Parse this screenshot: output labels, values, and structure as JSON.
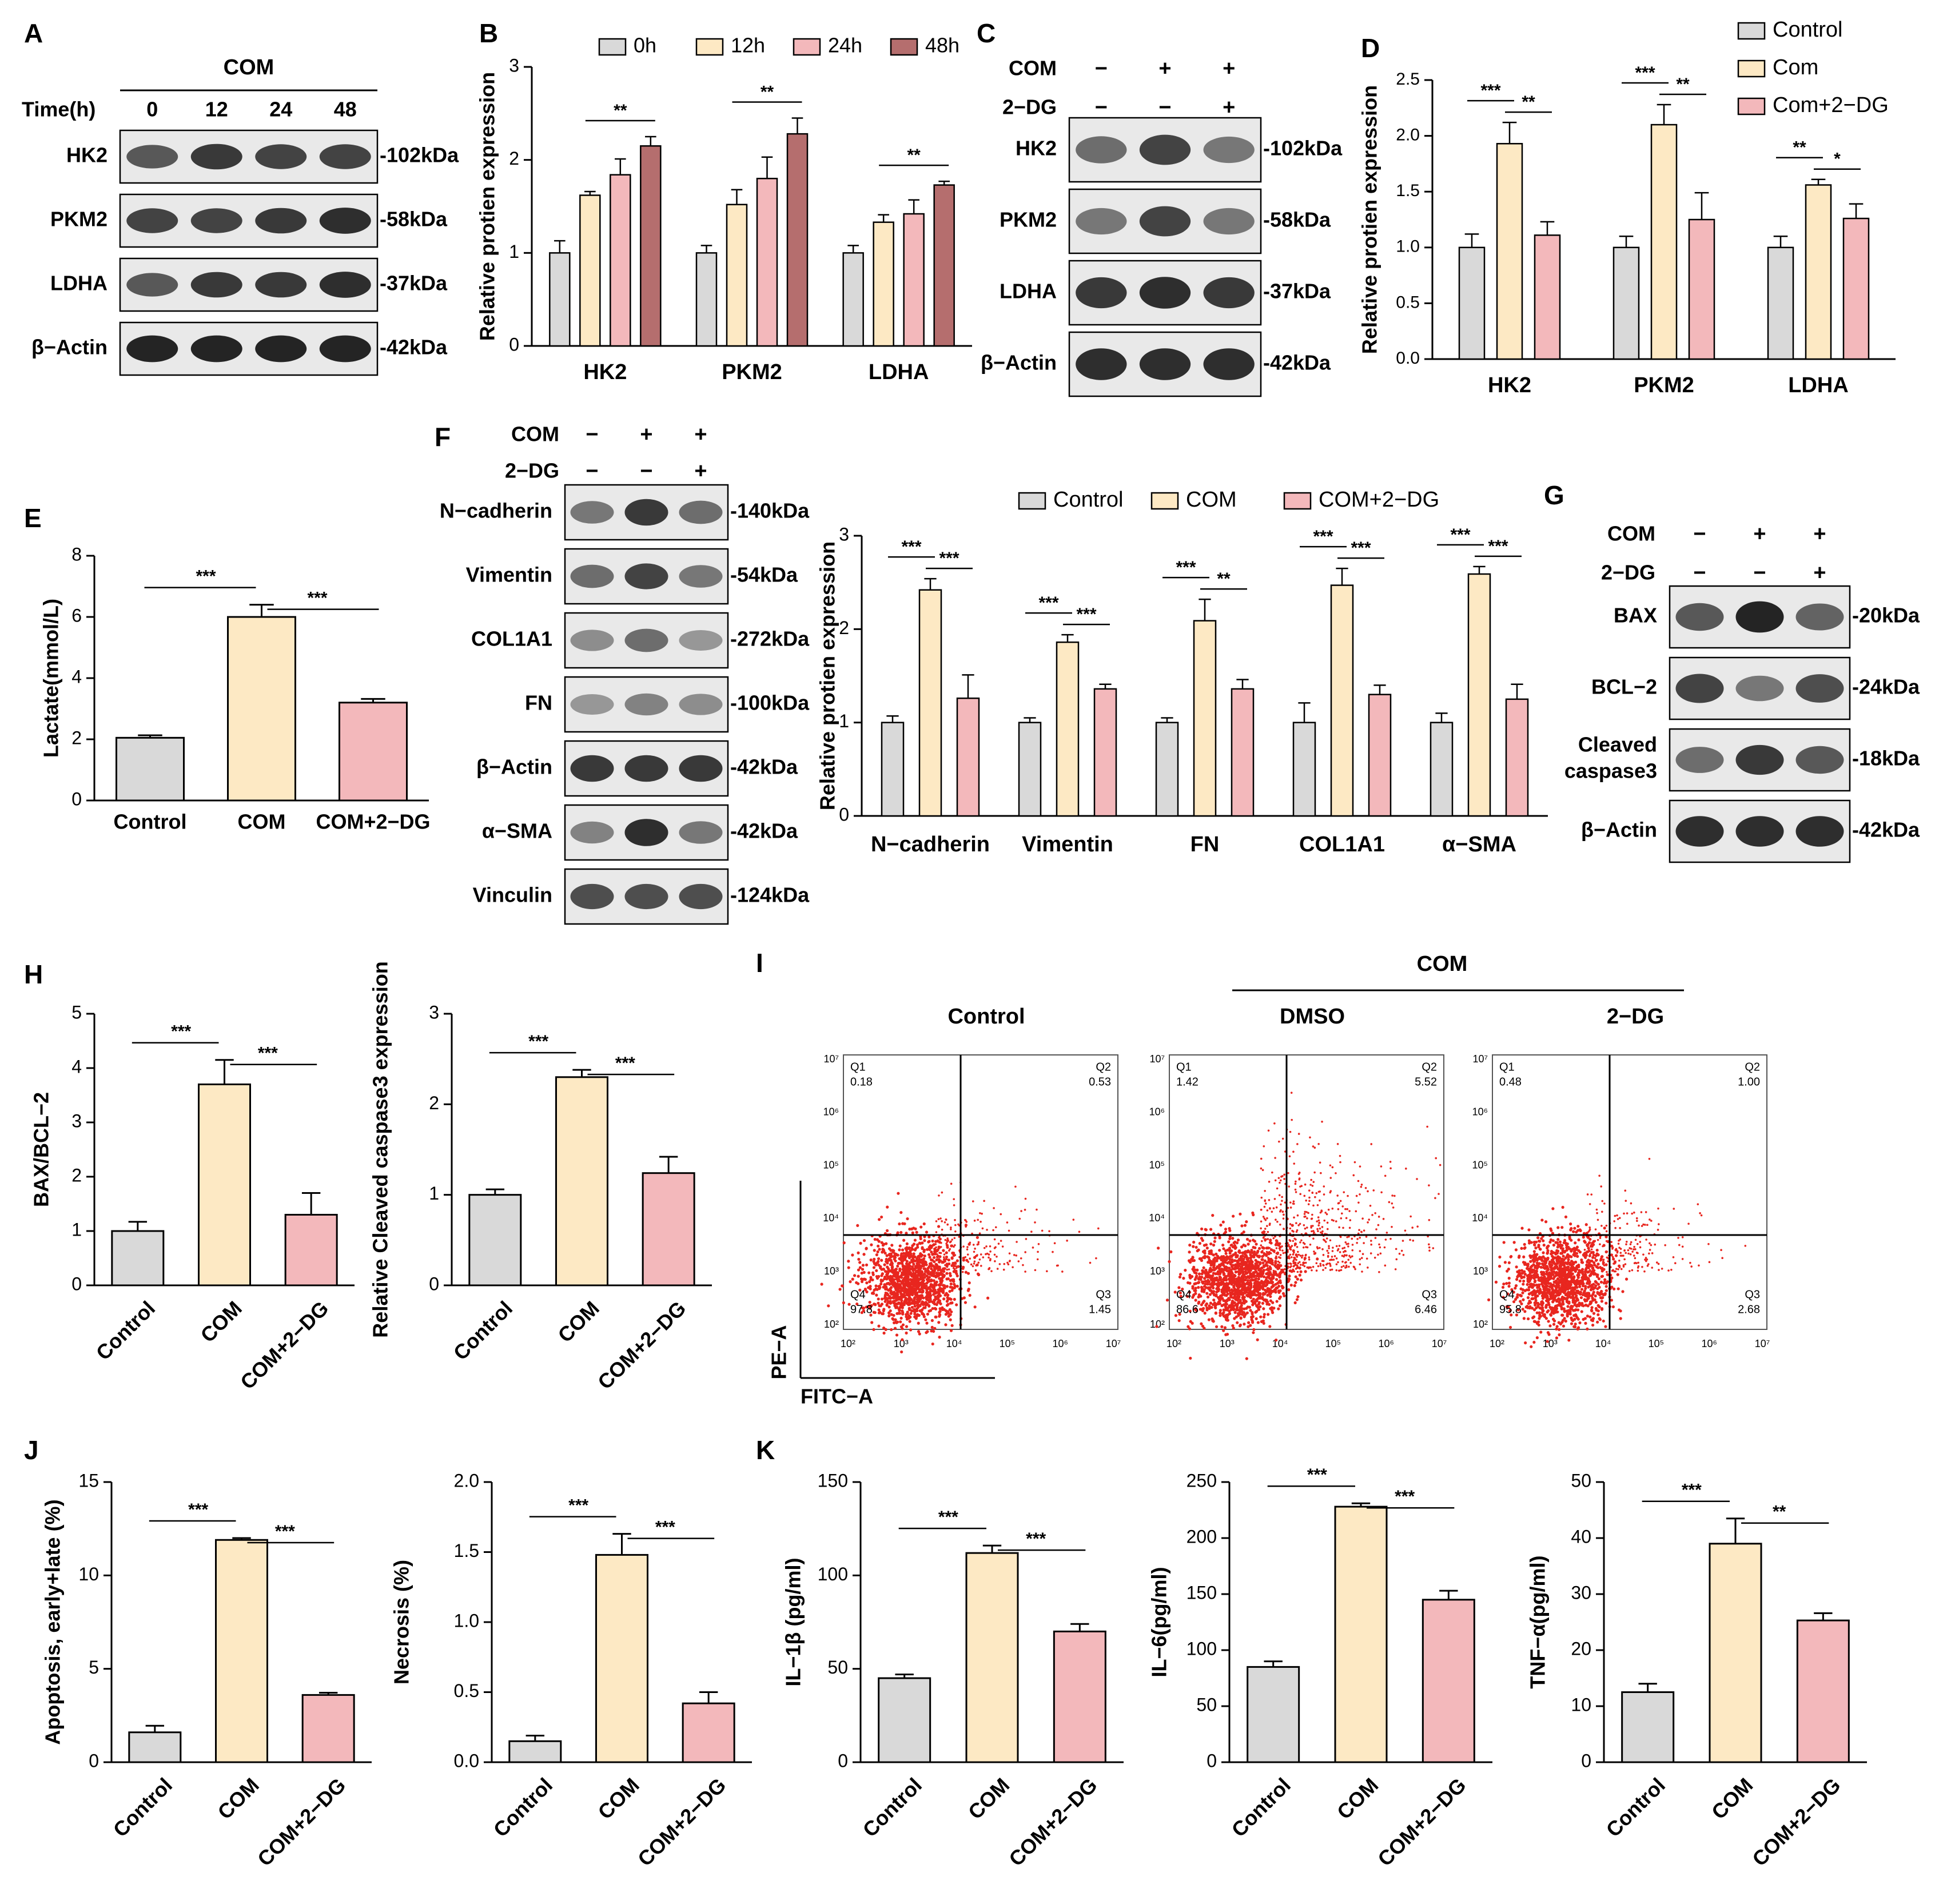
{
  "figure": {
    "panel_letters": [
      "A",
      "B",
      "C",
      "D",
      "E",
      "F",
      "G",
      "H",
      "I",
      "J",
      "K"
    ],
    "colors": {
      "control": "#d9d9d9",
      "com": "#fde9c4",
      "com_2dg": "#f3b8bb",
      "h0": "#d9d9d9",
      "h12": "#fde9c4",
      "h24": "#f3b8bb",
      "h48": "#b56e6e",
      "flow_dot": "#e8261f",
      "axis": "#000000",
      "blot_bg": "#e9e9e9",
      "band": "#1a1a1a"
    }
  },
  "blots": {
    "A": {
      "treatment": "COM",
      "time_label": "Time(h)",
      "lanes": [
        "0",
        "12",
        "24",
        "48"
      ],
      "rows": [
        {
          "name": "HK2",
          "kda": "-102kDa",
          "intensity": [
            0.7,
            0.85,
            0.8,
            0.8
          ]
        },
        {
          "name": "PKM2",
          "kda": "-58kDa",
          "intensity": [
            0.8,
            0.8,
            0.85,
            0.9
          ]
        },
        {
          "name": "LDHA",
          "kda": "-37kDa",
          "intensity": [
            0.7,
            0.85,
            0.85,
            0.9
          ]
        },
        {
          "name": "β−Actin",
          "kda": "-42kDa",
          "intensity": [
            0.95,
            0.95,
            0.95,
            0.95
          ]
        }
      ]
    },
    "C": {
      "row1_label": "COM",
      "row1": [
        "−",
        "+",
        "+"
      ],
      "row2_label": "2−DG",
      "row2": [
        "−",
        "−",
        "+"
      ],
      "rows": [
        {
          "name": "HK2",
          "kda": "-102kDa",
          "intensity": [
            0.6,
            0.8,
            0.55
          ]
        },
        {
          "name": "PKM2",
          "kda": "-58kDa",
          "intensity": [
            0.55,
            0.8,
            0.55
          ]
        },
        {
          "name": "LDHA",
          "kda": "-37kDa",
          "intensity": [
            0.85,
            0.9,
            0.85
          ]
        },
        {
          "name": "β−Actin",
          "kda": "-42kDa",
          "intensity": [
            0.9,
            0.9,
            0.9
          ]
        }
      ]
    },
    "F": {
      "row1_label": "COM",
      "row1": [
        "−",
        "+",
        "+"
      ],
      "row2_label": "2−DG",
      "row2": [
        "−",
        "−",
        "+"
      ],
      "rows": [
        {
          "name": "N−cadherin",
          "kda": "-140kDa",
          "intensity": [
            0.55,
            0.85,
            0.6
          ]
        },
        {
          "name": "Vimentin",
          "kda": "-54kDa",
          "intensity": [
            0.6,
            0.8,
            0.55
          ]
        },
        {
          "name": "COL1A1",
          "kda": "-272kDa",
          "intensity": [
            0.45,
            0.6,
            0.4
          ]
        },
        {
          "name": "FN",
          "kda": "-100kDa",
          "intensity": [
            0.4,
            0.5,
            0.45
          ]
        },
        {
          "name": "β−Actin",
          "kda": "-42kDa",
          "intensity": [
            0.85,
            0.85,
            0.85
          ]
        },
        {
          "name": "α−SMA",
          "kda": "-42kDa",
          "intensity": [
            0.5,
            0.9,
            0.55
          ]
        },
        {
          "name": "Vinculin",
          "kda": "-124kDa",
          "intensity": [
            0.75,
            0.75,
            0.75
          ]
        }
      ]
    },
    "G": {
      "row1_label": "COM",
      "row1": [
        "−",
        "+",
        "+"
      ],
      "row2_label": "2−DG",
      "row2": [
        "−",
        "−",
        "+"
      ],
      "rows": [
        {
          "name": "BAX",
          "kda": "-20kDa",
          "intensity": [
            0.7,
            0.95,
            0.65
          ]
        },
        {
          "name": "BCL−2",
          "kda": "-24kDa",
          "intensity": [
            0.8,
            0.55,
            0.75
          ]
        },
        {
          "name": "Cleaved caspase3",
          "kda": "-18kDa",
          "intensity": [
            0.6,
            0.85,
            0.7
          ]
        },
        {
          "name": "β−Actin",
          "kda": "-42kDa",
          "intensity": [
            0.9,
            0.9,
            0.9
          ]
        }
      ]
    }
  },
  "chart_data": [
    {
      "id": "B",
      "type": "bar",
      "ylabel": "Relative protien expression",
      "ylim": [
        0,
        3
      ],
      "yticks": [
        0,
        1,
        2,
        3
      ],
      "categories": [
        "HK2",
        "PKM2",
        "LDHA"
      ],
      "legend": [
        "0h",
        "12h",
        "24h",
        "48h"
      ],
      "series": [
        {
          "name": "0h",
          "values": [
            1.0,
            1.0,
            1.0
          ],
          "err": [
            0.13,
            0.08,
            0.08
          ]
        },
        {
          "name": "12h",
          "values": [
            1.62,
            1.52,
            1.33
          ],
          "err": [
            0.04,
            0.16,
            0.08
          ]
        },
        {
          "name": "24h",
          "values": [
            1.84,
            1.8,
            1.42
          ],
          "err": [
            0.17,
            0.23,
            0.15
          ]
        },
        {
          "name": "48h",
          "values": [
            2.15,
            2.28,
            1.73
          ],
          "err": [
            0.1,
            0.17,
            0.04
          ]
        }
      ],
      "sig": [
        {
          "cat": 0,
          "from": 1,
          "to": 3,
          "label": "**"
        },
        {
          "cat": 1,
          "from": 1,
          "to": 3,
          "label": "**"
        },
        {
          "cat": 2,
          "from": 1,
          "to": 3,
          "label": "**"
        }
      ]
    },
    {
      "id": "D",
      "type": "bar",
      "ylabel": "Relative protien expression",
      "ylim": [
        0,
        2.5
      ],
      "yticks": [
        0.0,
        0.5,
        1.0,
        1.5,
        2.0,
        2.5
      ],
      "categories": [
        "HK2",
        "PKM2",
        "LDHA"
      ],
      "legend": [
        "Control",
        "Com",
        "Com+2−DG"
      ],
      "series": [
        {
          "name": "Control",
          "values": [
            1.0,
            1.0,
            1.0
          ],
          "err": [
            0.12,
            0.1,
            0.1
          ]
        },
        {
          "name": "Com",
          "values": [
            1.93,
            2.1,
            1.56
          ],
          "err": [
            0.19,
            0.18,
            0.05
          ]
        },
        {
          "name": "Com+2−DG",
          "values": [
            1.11,
            1.25,
            1.26
          ],
          "err": [
            0.12,
            0.24,
            0.13
          ]
        }
      ],
      "sig": [
        {
          "cat": 0,
          "from": 0,
          "to": 1,
          "label": "***"
        },
        {
          "cat": 0,
          "from": 1,
          "to": 2,
          "label": "**"
        },
        {
          "cat": 1,
          "from": 0,
          "to": 1,
          "label": "***"
        },
        {
          "cat": 1,
          "from": 1,
          "to": 2,
          "label": "**"
        },
        {
          "cat": 2,
          "from": 0,
          "to": 1,
          "label": "**"
        },
        {
          "cat": 2,
          "from": 1,
          "to": 2,
          "label": "*"
        }
      ]
    },
    {
      "id": "E",
      "type": "bar",
      "ylabel": "Lactate(mmol/L)",
      "ylim": [
        0,
        8
      ],
      "yticks": [
        0,
        2,
        4,
        6,
        8
      ],
      "categories": [
        "Control",
        "COM",
        "COM+2−DG"
      ],
      "values": [
        2.05,
        6.0,
        3.2
      ],
      "err": [
        0.08,
        0.4,
        0.12
      ],
      "sig": [
        {
          "from": 0,
          "to": 1,
          "label": "***"
        },
        {
          "from": 1,
          "to": 2,
          "label": "***"
        }
      ]
    },
    {
      "id": "F",
      "type": "bar",
      "ylabel": "Relative protien expression",
      "ylim": [
        0,
        3
      ],
      "yticks": [
        0,
        1,
        2,
        3
      ],
      "categories": [
        "N−cadherin",
        "Vimentin",
        "FN",
        "COL1A1",
        "α−SMA"
      ],
      "legend": [
        "Control",
        "COM",
        "COM+2−DG"
      ],
      "series": [
        {
          "name": "Control",
          "values": [
            1.0,
            1.0,
            1.0,
            1.0,
            1.0
          ],
          "err": [
            0.07,
            0.05,
            0.05,
            0.21,
            0.1
          ]
        },
        {
          "name": "COM",
          "values": [
            2.42,
            1.86,
            2.09,
            2.47,
            2.59
          ],
          "err": [
            0.12,
            0.08,
            0.23,
            0.18,
            0.08
          ]
        },
        {
          "name": "COM+2−DG",
          "values": [
            1.26,
            1.36,
            1.36,
            1.3,
            1.25
          ],
          "err": [
            0.25,
            0.05,
            0.1,
            0.1,
            0.16
          ]
        }
      ],
      "sig": [
        {
          "cat": 0,
          "from": 0,
          "to": 1,
          "label": "***"
        },
        {
          "cat": 0,
          "from": 1,
          "to": 2,
          "label": "***"
        },
        {
          "cat": 1,
          "from": 0,
          "to": 1,
          "label": "***"
        },
        {
          "cat": 1,
          "from": 1,
          "to": 2,
          "label": "***"
        },
        {
          "cat": 2,
          "from": 0,
          "to": 1,
          "label": "***"
        },
        {
          "cat": 2,
          "from": 1,
          "to": 2,
          "label": "**"
        },
        {
          "cat": 3,
          "from": 0,
          "to": 1,
          "label": "***"
        },
        {
          "cat": 3,
          "from": 1,
          "to": 2,
          "label": "***"
        },
        {
          "cat": 4,
          "from": 0,
          "to": 1,
          "label": "***"
        },
        {
          "cat": 4,
          "from": 1,
          "to": 2,
          "label": "***"
        }
      ]
    },
    {
      "id": "H1",
      "type": "bar",
      "ylabel": "BAX/BCL−2",
      "ylim": [
        0,
        5
      ],
      "yticks": [
        0,
        1,
        2,
        3,
        4,
        5
      ],
      "categories": [
        "Control",
        "COM",
        "COM+2−DG"
      ],
      "values": [
        1.0,
        3.7,
        1.3
      ],
      "err": [
        0.17,
        0.45,
        0.4
      ],
      "sig": [
        {
          "from": 0,
          "to": 1,
          "label": "***"
        },
        {
          "from": 1,
          "to": 2,
          "label": "***"
        }
      ]
    },
    {
      "id": "H2",
      "type": "bar",
      "ylabel": "Relative Cleaved caspase3 expression",
      "ylim": [
        0,
        3
      ],
      "yticks": [
        0,
        1,
        2,
        3
      ],
      "categories": [
        "Control",
        "COM",
        "COM+2−DG"
      ],
      "values": [
        1.0,
        2.3,
        1.24
      ],
      "err": [
        0.06,
        0.08,
        0.18
      ],
      "sig": [
        {
          "from": 0,
          "to": 1,
          "label": "***"
        },
        {
          "from": 1,
          "to": 2,
          "label": "***"
        }
      ]
    },
    {
      "id": "J1",
      "type": "bar",
      "ylabel": "Apoptosis, early+late (%)",
      "ylim": [
        0,
        15
      ],
      "yticks": [
        0,
        5,
        10,
        15
      ],
      "categories": [
        "Control",
        "COM",
        "COM+2−DG"
      ],
      "values": [
        1.6,
        11.9,
        3.6
      ],
      "err": [
        0.35,
        0.1,
        0.12
      ],
      "sig": [
        {
          "from": 0,
          "to": 1,
          "label": "***"
        },
        {
          "from": 1,
          "to": 2,
          "label": "***"
        }
      ]
    },
    {
      "id": "J2",
      "type": "bar",
      "ylabel": "Necrosis (%)",
      "ylim": [
        0,
        2.0
      ],
      "yticks": [
        0.0,
        0.5,
        1.0,
        1.5,
        2.0
      ],
      "categories": [
        "Control",
        "COM",
        "COM+2−DG"
      ],
      "values": [
        0.15,
        1.48,
        0.42
      ],
      "err": [
        0.04,
        0.15,
        0.08
      ],
      "sig": [
        {
          "from": 0,
          "to": 1,
          "label": "***"
        },
        {
          "from": 1,
          "to": 2,
          "label": "***"
        }
      ]
    },
    {
      "id": "K1",
      "type": "bar",
      "ylabel": "IL−1β (pg/ml)",
      "ylim": [
        0,
        150
      ],
      "yticks": [
        0,
        50,
        100,
        150
      ],
      "categories": [
        "Control",
        "COM",
        "COM+2−DG"
      ],
      "values": [
        45,
        112,
        70
      ],
      "err": [
        2,
        4,
        4
      ],
      "sig": [
        {
          "from": 0,
          "to": 1,
          "label": "***"
        },
        {
          "from": 1,
          "to": 2,
          "label": "***"
        }
      ]
    },
    {
      "id": "K2",
      "type": "bar",
      "ylabel": "IL−6(pg/ml)",
      "ylim": [
        0,
        250
      ],
      "yticks": [
        0,
        50,
        100,
        150,
        200,
        250
      ],
      "categories": [
        "Control",
        "COM",
        "COM+2−DG"
      ],
      "values": [
        85,
        228,
        145
      ],
      "err": [
        5,
        3,
        8
      ],
      "sig": [
        {
          "from": 0,
          "to": 1,
          "label": "***"
        },
        {
          "from": 1,
          "to": 2,
          "label": "***"
        }
      ]
    },
    {
      "id": "K3",
      "type": "bar",
      "ylabel": "TNF−α(pg/ml)",
      "ylim": [
        0,
        50
      ],
      "yticks": [
        0,
        10,
        20,
        30,
        40,
        50
      ],
      "categories": [
        "Control",
        "COM",
        "COM+2−DG"
      ],
      "values": [
        12.5,
        39,
        25.3
      ],
      "err": [
        1.5,
        4.5,
        1.3
      ],
      "sig": [
        {
          "from": 0,
          "to": 1,
          "label": "***"
        },
        {
          "from": 1,
          "to": 2,
          "label": "**"
        }
      ]
    },
    {
      "id": "I",
      "type": "scatter",
      "group_header": "COM",
      "x_axis": "FITC−A",
      "y_axis": "PE−A",
      "log_ticks": [
        "10²",
        "10³",
        "10⁴",
        "10⁵",
        "10⁶",
        "10⁷"
      ],
      "plots": [
        {
          "title": "Control",
          "q": {
            "Q1": "0.18",
            "Q2": "0.53",
            "Q3": "1.45",
            "Q4": "97.8"
          }
        },
        {
          "title": "DMSO",
          "q": {
            "Q1": "1.42",
            "Q2": "5.52",
            "Q3": "6.46",
            "Q4": "86.6"
          }
        },
        {
          "title": "2−DG",
          "q": {
            "Q1": "0.48",
            "Q2": "1.00",
            "Q3": "2.68",
            "Q4": "95.8"
          }
        }
      ]
    }
  ]
}
